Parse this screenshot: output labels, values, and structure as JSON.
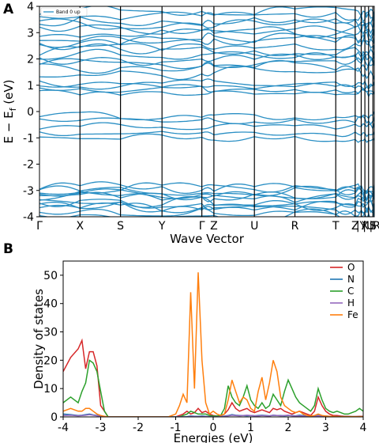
{
  "chart_data": [
    {
      "panel": "A",
      "type": "line",
      "title": "",
      "xlabel": "Wave Vector",
      "ylabel": "E − E",
      "ylabel_sub": "f",
      "ylabel_unit": "(eV)",
      "ylim": [
        -4,
        4
      ],
      "yticks": [
        -4,
        -3,
        -2,
        -1,
        0,
        1,
        2,
        3,
        4
      ],
      "kpoints": [
        {
          "label": "Γ",
          "pos": 0.0
        },
        {
          "label": "X",
          "pos": 0.121
        },
        {
          "label": "S",
          "pos": 0.242
        },
        {
          "label": "Y",
          "pos": 0.366
        },
        {
          "label": "Γ",
          "pos": 0.485
        },
        {
          "label": "Z",
          "pos": 0.521
        },
        {
          "label": "U",
          "pos": 0.642
        },
        {
          "label": "R",
          "pos": 0.763
        },
        {
          "label": "T",
          "pos": 0.885
        },
        {
          "label": "Z",
          "pos": 0.943
        },
        {
          "label": "|Y",
          "pos": 0.961
        },
        {
          "label": "X",
          "pos": 0.972
        },
        {
          "label": "|U",
          "pos": 0.983
        },
        {
          "label": "S",
          "pos": 0.996
        },
        {
          "label": "|R",
          "pos": 1.0
        }
      ],
      "legend": [
        "Band 0 up"
      ],
      "line_color": "#2a8fc4",
      "band_centers": [
        -3.95,
        -3.85,
        -3.72,
        -3.6,
        -3.5,
        -3.4,
        -3.3,
        -3.2,
        -3.12,
        -3.05,
        -2.95,
        -2.85,
        -1.0,
        -0.85,
        -0.55,
        -0.3,
        -0.15,
        0.7,
        0.85,
        0.95,
        1.05,
        1.5,
        1.7,
        1.85,
        2.0,
        2.15,
        2.3,
        2.5,
        2.65,
        2.8,
        3.0,
        3.1,
        3.3,
        3.45,
        3.6,
        3.8
      ]
    },
    {
      "panel": "B",
      "type": "line",
      "title": "",
      "xlabel": "Energies (eV)",
      "ylabel": "Density of states",
      "xlim": [
        -4,
        4
      ],
      "ylim": [
        0,
        55
      ],
      "xticks": [
        -4,
        -3,
        -2,
        -1,
        0,
        1,
        2,
        3,
        4
      ],
      "yticks": [
        0,
        10,
        20,
        30,
        40,
        50
      ],
      "legend_position": "top-right",
      "x": [
        -4.0,
        -3.8,
        -3.6,
        -3.5,
        -3.4,
        -3.3,
        -3.2,
        -3.1,
        -3.0,
        -2.9,
        -2.8,
        -2.6,
        -2.4,
        -2.2,
        -2.0,
        -1.8,
        -1.6,
        -1.4,
        -1.2,
        -1.0,
        -0.9,
        -0.8,
        -0.7,
        -0.6,
        -0.5,
        -0.4,
        -0.3,
        -0.2,
        -0.1,
        0.0,
        0.1,
        0.2,
        0.3,
        0.4,
        0.5,
        0.6,
        0.7,
        0.8,
        0.9,
        1.0,
        1.1,
        1.2,
        1.3,
        1.4,
        1.5,
        1.6,
        1.7,
        1.8,
        1.9,
        2.0,
        2.1,
        2.2,
        2.3,
        2.4,
        2.5,
        2.6,
        2.7,
        2.8,
        2.9,
        3.0,
        3.1,
        3.2,
        3.3,
        3.4,
        3.5,
        3.6,
        3.7,
        3.8,
        3.9,
        4.0
      ],
      "series": [
        {
          "name": "O",
          "color": "#d62728",
          "values": [
            16,
            21,
            24,
            27,
            17,
            23,
            23,
            18,
            4,
            2,
            0,
            0,
            0,
            0,
            0,
            0,
            0,
            0,
            0,
            0,
            0.5,
            1,
            2,
            1,
            1.5,
            3,
            1.5,
            2,
            1,
            0.5,
            0.3,
            0.5,
            1,
            2.5,
            5,
            3,
            2,
            2.5,
            3,
            2,
            1.5,
            2,
            2.5,
            2,
            1.5,
            3,
            2.5,
            3,
            2,
            1.5,
            1,
            1.5,
            2,
            1.5,
            1,
            0.5,
            2,
            7,
            4,
            2,
            1,
            0.5,
            0.5,
            0.3,
            0.2,
            0.2,
            0.1,
            0.1,
            0.2,
            0.2
          ]
        },
        {
          "name": "N",
          "color": "#1f77b4",
          "values": [
            1,
            0.8,
            0.5,
            0.6,
            0.8,
            1,
            0.7,
            0.5,
            0.3,
            0.1,
            0,
            0,
            0,
            0,
            0,
            0,
            0,
            0,
            0,
            0,
            0,
            0,
            0.1,
            0.3,
            0.2,
            0.2,
            0.3,
            0.2,
            0.1,
            0,
            0.1,
            0.2,
            0.3,
            0.5,
            0.8,
            0.6,
            0.5,
            0.5,
            0.4,
            0.5,
            0.4,
            0.5,
            0.6,
            0.5,
            0.4,
            0.6,
            0.5,
            0.5,
            0.4,
            0.5,
            0.5,
            0.4,
            0.6,
            0.5,
            0.4,
            0.3,
            0.4,
            0.5,
            0.4,
            0.3,
            0.2,
            0.2,
            0.1,
            0.1,
            0.1,
            0.1,
            0.1,
            0.1,
            0.1,
            0.1
          ]
        },
        {
          "name": "C",
          "color": "#2ca02c",
          "values": [
            5,
            7,
            5,
            9,
            12,
            20,
            19,
            16,
            9,
            2,
            0,
            0,
            0,
            0,
            0,
            0,
            0,
            0,
            0,
            0,
            0,
            0.5,
            1,
            2,
            1.5,
            1,
            1,
            1,
            0.5,
            0.3,
            0.3,
            0.5,
            3,
            11,
            7,
            5,
            4,
            7,
            11,
            6,
            4,
            3,
            5,
            3,
            4,
            8,
            6,
            4,
            9,
            13,
            10,
            7,
            5,
            4,
            3,
            2,
            4,
            10,
            6,
            3,
            2,
            1.5,
            2,
            1.5,
            1,
            1,
            1.5,
            2,
            3,
            2
          ]
        },
        {
          "name": "H",
          "color": "#9467bd",
          "values": [
            0.5,
            0.6,
            0.4,
            0.5,
            0.6,
            0.8,
            0.6,
            0.4,
            0.2,
            0.1,
            0,
            0,
            0,
            0,
            0,
            0,
            0,
            0,
            0,
            0,
            0,
            0,
            0,
            0.1,
            0.1,
            0.1,
            0.1,
            0.1,
            0,
            0,
            0,
            0.1,
            0.2,
            0.4,
            0.6,
            0.5,
            0.4,
            0.5,
            0.6,
            0.5,
            0.4,
            0.3,
            0.5,
            0.4,
            0.3,
            0.6,
            0.5,
            0.4,
            0.5,
            0.6,
            0.4,
            0.3,
            0.4,
            0.3,
            0.2,
            0.2,
            0.3,
            0.4,
            0.3,
            0.2,
            0.1,
            0.1,
            0.1,
            0.1,
            0.1,
            0.1,
            0.1,
            0.1,
            0.1,
            0.1
          ]
        },
        {
          "name": "Fe",
          "color": "#ff7f0e",
          "values": [
            2,
            3,
            2,
            2,
            3,
            3,
            2,
            1,
            0.5,
            0.2,
            0,
            0,
            0,
            0,
            0,
            0,
            0,
            0,
            0,
            1,
            4,
            8,
            5,
            44,
            10,
            51,
            20,
            5,
            1,
            2,
            1,
            0.5,
            1,
            6,
            13,
            9,
            5,
            7,
            6,
            3,
            2,
            9,
            14,
            6,
            12,
            20,
            16,
            7,
            4,
            3,
            2,
            1.5,
            2,
            1,
            0.5,
            0.3,
            0.5,
            1,
            0.5,
            0.3,
            0.2,
            0.2,
            0.1,
            0.1,
            0.1,
            0.1,
            0.1,
            0.1,
            0.1,
            0.1
          ]
        }
      ]
    }
  ]
}
